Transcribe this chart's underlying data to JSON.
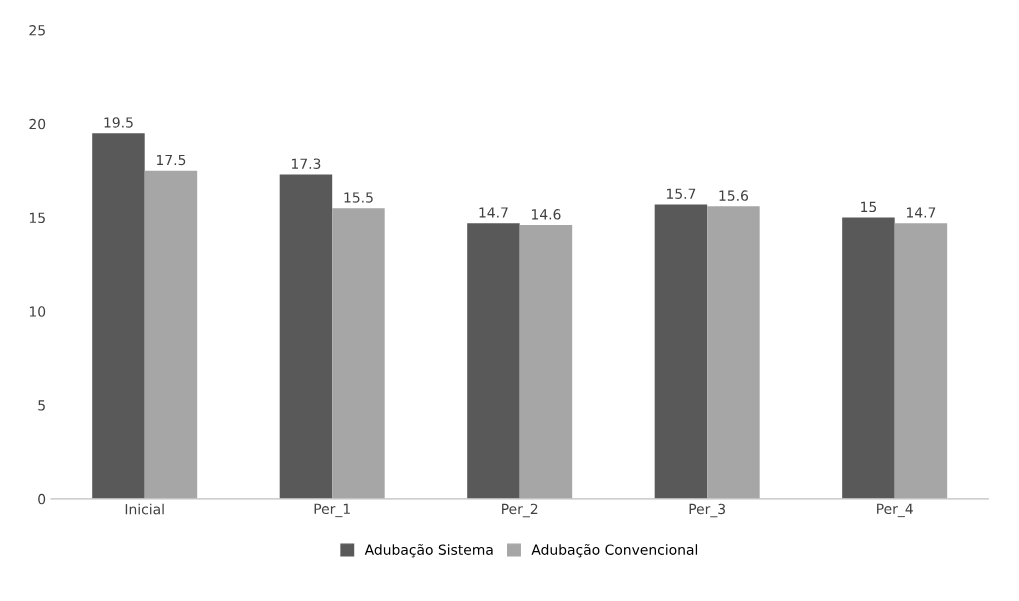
{
  "chart_data": {
    "type": "bar",
    "categories": [
      "Inicial",
      "Per_1",
      "Per_2",
      "Per_3",
      "Per_4"
    ],
    "series": [
      {
        "name": "Adubação Sistema",
        "color": "#595959",
        "values": [
          19.5,
          17.3,
          14.7,
          15.7,
          15
        ]
      },
      {
        "name": "Adubação Convencional",
        "color": "#a6a6a6",
        "values": [
          17.5,
          15.5,
          14.6,
          15.6,
          14.7
        ]
      }
    ],
    "ylim": [
      0,
      25
    ],
    "yticks": [
      0,
      5,
      10,
      15,
      20,
      25
    ],
    "data_labels": true,
    "legend": "bottom",
    "grid": false
  }
}
